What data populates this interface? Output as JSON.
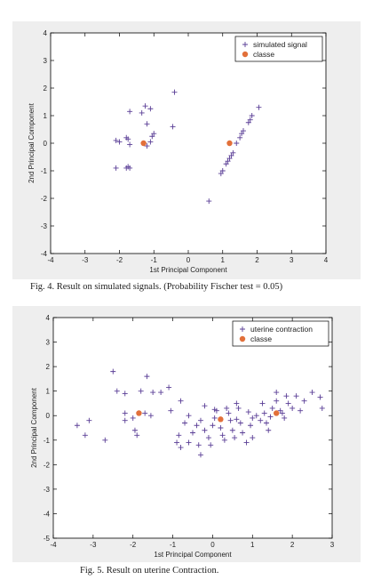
{
  "colors": {
    "marker": "#5a3e96",
    "centroid": "#e2703a",
    "panel_bg": "#eeeeee",
    "plot_bg": "#ffffff"
  },
  "figures": [
    {
      "caption": "Fig. 4.  Result on simulated signals. (Probability Fischer test = 0.05)"
    },
    {
      "caption": "Fig. 5.  Result on uterine Contraction."
    }
  ],
  "chart_data": [
    {
      "type": "scatter",
      "title": "",
      "xlabel": "1st Principal Component",
      "ylabel": "2nd Principal Component",
      "xlim": [
        -4,
        4
      ],
      "ylim": [
        -4,
        4
      ],
      "xticks": [
        -4,
        -3,
        -2,
        -1,
        0,
        1,
        2,
        3,
        4
      ],
      "yticks": [
        -4,
        -3,
        -2,
        -1,
        0,
        1,
        2,
        3,
        4
      ],
      "grid": false,
      "legend_position": "top-right",
      "series": [
        {
          "name": "simulated signal",
          "marker": "plus",
          "points": [
            [
              -2.1,
              0.1
            ],
            [
              -2.0,
              0.05
            ],
            [
              -1.8,
              0.2
            ],
            [
              -1.75,
              0.15
            ],
            [
              -1.7,
              1.15
            ],
            [
              -1.8,
              -0.9
            ],
            [
              -1.75,
              -0.85
            ],
            [
              -1.7,
              -0.9
            ],
            [
              -2.1,
              -0.9
            ],
            [
              -1.7,
              -0.05
            ],
            [
              -1.35,
              1.1
            ],
            [
              -1.2,
              0.7
            ],
            [
              -1.1,
              1.25
            ],
            [
              -1.25,
              1.35
            ],
            [
              -1.0,
              0.35
            ],
            [
              -1.05,
              0.25
            ],
            [
              -1.1,
              0.05
            ],
            [
              -1.2,
              -0.1
            ],
            [
              -0.45,
              0.6
            ],
            [
              -0.4,
              1.85
            ],
            [
              0.6,
              -2.1
            ],
            [
              0.95,
              -1.1
            ],
            [
              1.0,
              -1.0
            ],
            [
              1.1,
              -0.75
            ],
            [
              1.15,
              -0.65
            ],
            [
              1.2,
              -0.55
            ],
            [
              1.25,
              -0.45
            ],
            [
              1.3,
              -0.35
            ],
            [
              1.4,
              0.0
            ],
            [
              1.5,
              0.2
            ],
            [
              1.55,
              0.35
            ],
            [
              1.6,
              0.45
            ],
            [
              1.75,
              0.75
            ],
            [
              1.8,
              0.85
            ],
            [
              1.85,
              1.0
            ],
            [
              2.05,
              1.3
            ]
          ]
        },
        {
          "name": "classe",
          "marker": "circle",
          "points": [
            [
              -1.3,
              0.0
            ],
            [
              1.2,
              0.0
            ]
          ]
        }
      ]
    },
    {
      "type": "scatter",
      "title": "",
      "xlabel": "1st Principal Component",
      "ylabel": "2nd Principal Component",
      "xlim": [
        -4,
        3
      ],
      "ylim": [
        -5,
        4
      ],
      "xticks": [
        -4,
        -3,
        -2,
        -1,
        0,
        1,
        2,
        3
      ],
      "yticks": [
        -5,
        -4,
        -3,
        -2,
        -1,
        0,
        1,
        2,
        3,
        4
      ],
      "grid": false,
      "legend_position": "top-right",
      "series": [
        {
          "name": "uterine contraction",
          "marker": "plus",
          "points": [
            [
              -2.5,
              1.8
            ],
            [
              -2.4,
              1.0
            ],
            [
              -2.2,
              0.9
            ],
            [
              -1.8,
              1.0
            ],
            [
              -1.65,
              1.6
            ],
            [
              -1.5,
              0.95
            ],
            [
              -1.3,
              0.95
            ],
            [
              -1.1,
              1.15
            ],
            [
              -3.1,
              -0.2
            ],
            [
              -3.2,
              -0.8
            ],
            [
              -3.4,
              -0.4
            ],
            [
              -2.7,
              -1.0
            ],
            [
              -2.2,
              -0.2
            ],
            [
              -2.0,
              -0.1
            ],
            [
              -1.95,
              -0.6
            ],
            [
              -2.2,
              0.1
            ],
            [
              -1.9,
              -0.8
            ],
            [
              -1.7,
              0.1
            ],
            [
              -1.55,
              0.0
            ],
            [
              -0.8,
              0.6
            ],
            [
              -1.05,
              0.2
            ],
            [
              -0.6,
              0.0
            ],
            [
              -0.7,
              -0.3
            ],
            [
              -0.85,
              -0.8
            ],
            [
              -0.9,
              -1.1
            ],
            [
              -0.8,
              -1.3
            ],
            [
              -0.6,
              -1.1
            ],
            [
              -0.5,
              -0.7
            ],
            [
              -0.4,
              -0.4
            ],
            [
              -0.3,
              -0.2
            ],
            [
              -0.2,
              -0.6
            ],
            [
              -0.1,
              -0.9
            ],
            [
              -0.35,
              -1.2
            ],
            [
              -0.3,
              -1.6
            ],
            [
              -0.05,
              -1.2
            ],
            [
              0.0,
              -0.4
            ],
            [
              0.05,
              -0.1
            ],
            [
              0.1,
              0.2
            ],
            [
              0.2,
              -0.5
            ],
            [
              0.25,
              -0.8
            ],
            [
              0.3,
              -1.0
            ],
            [
              0.35,
              0.3
            ],
            [
              0.4,
              0.1
            ],
            [
              0.45,
              -0.2
            ],
            [
              0.5,
              -0.6
            ],
            [
              0.55,
              -0.9
            ],
            [
              0.6,
              0.5
            ],
            [
              0.65,
              0.3
            ],
            [
              0.7,
              -0.3
            ],
            [
              0.75,
              -0.7
            ],
            [
              0.85,
              -1.1
            ],
            [
              0.9,
              0.15
            ],
            [
              0.95,
              -0.4
            ],
            [
              1.0,
              -0.1
            ],
            [
              1.1,
              0.0
            ],
            [
              1.2,
              -0.2
            ],
            [
              1.25,
              0.5
            ],
            [
              1.3,
              0.1
            ],
            [
              1.35,
              -0.3
            ],
            [
              1.4,
              -0.6
            ],
            [
              1.45,
              -0.05
            ],
            [
              1.5,
              0.3
            ],
            [
              1.6,
              0.6
            ],
            [
              1.7,
              0.2
            ],
            [
              1.75,
              0.1
            ],
            [
              1.8,
              -0.1
            ],
            [
              1.9,
              0.5
            ],
            [
              2.0,
              0.3
            ],
            [
              2.1,
              0.8
            ],
            [
              2.2,
              0.2
            ],
            [
              2.3,
              0.6
            ],
            [
              1.6,
              0.95
            ],
            [
              1.85,
              0.8
            ],
            [
              2.5,
              0.95
            ],
            [
              2.7,
              0.75
            ],
            [
              2.75,
              0.3
            ],
            [
              -0.2,
              0.4
            ],
            [
              0.05,
              0.25
            ],
            [
              0.6,
              -0.15
            ],
            [
              1.0,
              -0.9
            ]
          ]
        },
        {
          "name": "classe",
          "marker": "circle",
          "points": [
            [
              -1.85,
              0.1
            ],
            [
              0.2,
              -0.15
            ],
            [
              1.6,
              0.1
            ]
          ]
        }
      ]
    }
  ]
}
